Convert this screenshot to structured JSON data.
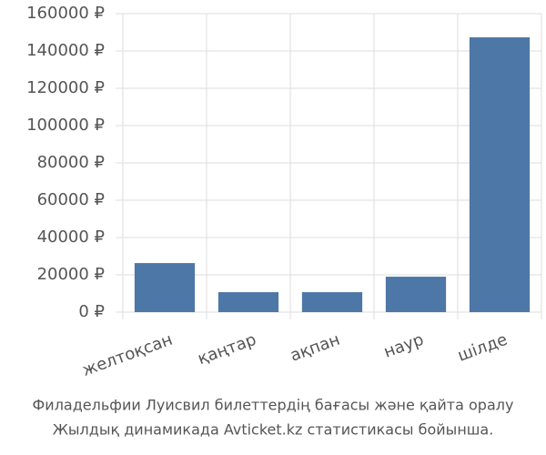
{
  "chart_data": {
    "type": "bar",
    "categories": [
      "желтоқсан",
      "қаңтар",
      "ақпан",
      "наур",
      "шілде"
    ],
    "values": [
      26300,
      10700,
      10700,
      19000,
      147300
    ],
    "color": "#4d77a7",
    "ylim": [
      0,
      160000
    ],
    "yticks": [
      {
        "value": 0,
        "label": "0 ₽"
      },
      {
        "value": 20000,
        "label": "20000 ₽"
      },
      {
        "value": 40000,
        "label": "40000 ₽"
      },
      {
        "value": 60000,
        "label": "60000 ₽"
      },
      {
        "value": 80000,
        "label": "80000 ₽"
      },
      {
        "value": 100000,
        "label": "100000 ₽"
      },
      {
        "value": 120000,
        "label": "120000 ₽"
      },
      {
        "value": 140000,
        "label": "140000 ₽"
      },
      {
        "value": 160000,
        "label": "160000 ₽"
      }
    ],
    "grid": true,
    "caption": [
      "Филадельфии Луисвил билеттердің бағасы және қайта оралу",
      "Жылдық динамикада Avticket.kz статистикасы бойынша."
    ]
  }
}
